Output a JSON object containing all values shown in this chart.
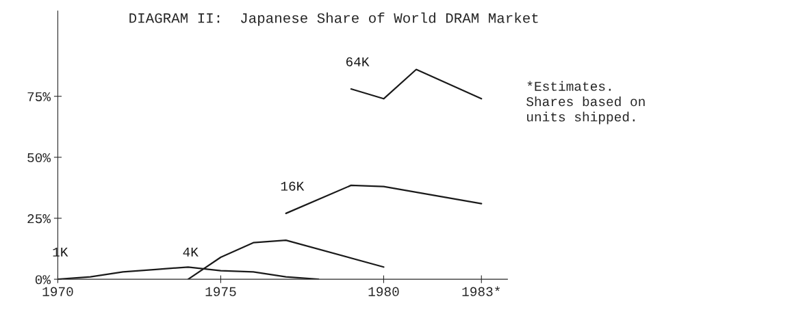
{
  "chart_data": {
    "type": "line",
    "title": "DIAGRAM II:  Japanese Share of World DRAM Market",
    "annotations": [
      "*Estimates.\nShares based on\nunits shipped."
    ],
    "series": [
      {
        "name": "1K",
        "color": "#1a1a1a",
        "x": [
          1970,
          1971,
          1972,
          1973,
          1974,
          1975,
          1976,
          1977,
          1978
        ],
        "values": [
          0,
          1,
          3,
          4,
          5,
          3.5,
          3,
          1,
          0
        ]
      },
      {
        "name": "4K",
        "color": "#1a1a1a",
        "x": [
          1974,
          1975,
          1976,
          1977,
          1980
        ],
        "values": [
          0,
          9,
          15,
          16,
          5
        ]
      },
      {
        "name": "16K",
        "color": "#1a1a1a",
        "x": [
          1977,
          1979,
          1980,
          1983
        ],
        "values": [
          27,
          38.5,
          38,
          31
        ]
      },
      {
        "name": "64K",
        "color": "#1a1a1a",
        "x": [
          1979,
          1980,
          1981,
          1983
        ],
        "values": [
          78,
          74,
          86,
          74
        ]
      }
    ],
    "xlim": [
      1970,
      1983.8
    ],
    "ylim": [
      0,
      110
    ],
    "xticks": [
      1970,
      1975,
      1980,
      {
        "value": 1983,
        "label": "1983*"
      }
    ],
    "yticks": [
      {
        "value": 0,
        "label": "0%"
      },
      {
        "value": 25,
        "label": "25%"
      },
      {
        "value": 50,
        "label": "50%"
      },
      {
        "value": 75,
        "label": "75%"
      }
    ],
    "grid": false,
    "legend": false,
    "marker": "none",
    "line_style": "solid"
  }
}
